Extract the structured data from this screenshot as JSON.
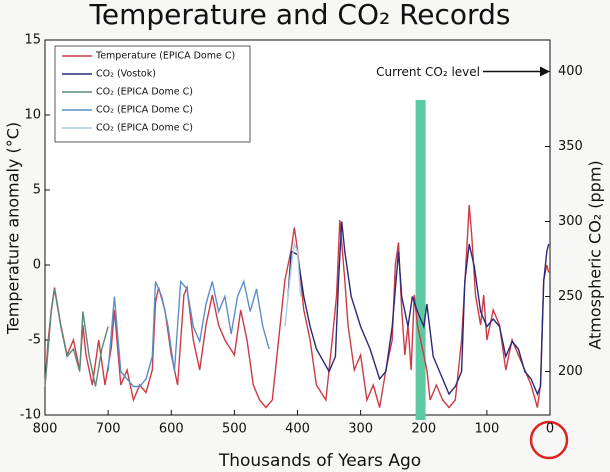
{
  "chart_data": {
    "type": "line",
    "title": "Temperature and CO₂ Records",
    "x_label": "Thousands of Years Ago",
    "y_label": "Temperature anomaly (°C)",
    "y2_label": "Atmospheric CO₂ (ppm)",
    "xlim": [
      800,
      0
    ],
    "xticks": [
      800,
      700,
      600,
      500,
      400,
      300,
      200,
      100,
      0
    ],
    "ylim": [
      -10,
      15
    ],
    "yticks": [
      -10,
      -5,
      0,
      5,
      10,
      15
    ],
    "y2lim": [
      171,
      421
    ],
    "y2ticks": [
      200,
      250,
      300,
      350,
      400
    ],
    "annotation": {
      "text": "Current CO₂ level",
      "value": 400
    },
    "highlight": {
      "x": 205,
      "color": "#5cc9a2"
    },
    "series": [
      {
        "name": "Temperature (EPICA Dome C)",
        "color": "#cc3b45",
        "x": [
          800,
          795,
          790,
          785,
          775,
          765,
          755,
          745,
          740,
          735,
          725,
          715,
          705,
          695,
          690,
          680,
          670,
          660,
          650,
          640,
          630,
          625,
          620,
          610,
          600,
          590,
          580,
          575,
          565,
          555,
          545,
          535,
          525,
          515,
          500,
          490,
          480,
          470,
          460,
          450,
          440,
          430,
          420,
          410,
          405,
          400,
          395,
          390,
          380,
          370,
          355,
          345,
          338,
          333,
          325,
          320,
          310,
          300,
          290,
          280,
          270,
          260,
          250,
          245,
          240,
          235,
          230,
          225,
          220,
          215,
          210,
          200,
          195,
          190,
          180,
          170,
          160,
          150,
          140,
          132,
          128,
          124,
          118,
          110,
          105,
          100,
          90,
          80,
          70,
          60,
          50,
          40,
          30,
          20,
          15,
          10,
          5,
          2
        ],
        "values": [
          -8,
          -5,
          -3,
          -1.5,
          -4,
          -6,
          -5,
          -7,
          -4,
          -6,
          -8,
          -5,
          -8,
          -5.5,
          -3,
          -8,
          -7,
          -9,
          -8,
          -8.5,
          -7,
          -2.5,
          -1.5,
          -3,
          -6,
          -8,
          -2,
          -1.5,
          -5,
          -7,
          -4,
          -2,
          -4,
          -5,
          -6,
          -3,
          -5,
          -8,
          -9,
          -9.5,
          -9,
          -5,
          -1,
          1,
          2.5,
          1,
          -1,
          -3,
          -5,
          -8,
          -9,
          -5,
          -2,
          3,
          -1,
          -4,
          -7,
          -6,
          -9,
          -8,
          -9.5,
          -7,
          -5,
          0,
          1.5,
          -3,
          -6,
          -4,
          -7,
          -2,
          -4,
          -6,
          -7,
          -9,
          -8,
          -9,
          -9.5,
          -9,
          -5,
          1,
          4,
          2,
          -2,
          -4,
          -2,
          -5,
          -3,
          -4,
          -7,
          -5,
          -6,
          -7,
          -8,
          -9.5,
          -8,
          -1,
          0,
          -0.5
        ]
      },
      {
        "name": "CO₂ (Vostok)",
        "color": "#2a2a78",
        "axis": "y2",
        "x": [
          415,
          410,
          400,
          390,
          380,
          370,
          350,
          340,
          335,
          330,
          325,
          315,
          300,
          285,
          270,
          260,
          250,
          240,
          235,
          225,
          218,
          210,
          200,
          195,
          185,
          170,
          160,
          150,
          140,
          135,
          128,
          120,
          110,
          100,
          90,
          80,
          70,
          60,
          50,
          40,
          30,
          20,
          15,
          10,
          5,
          2
        ],
        "values": [
          250,
          280,
          278,
          250,
          230,
          215,
          200,
          210,
          260,
          300,
          280,
          250,
          230,
          215,
          195,
          200,
          230,
          280,
          250,
          230,
          250,
          240,
          230,
          245,
          210,
          195,
          185,
          190,
          200,
          260,
          285,
          270,
          240,
          230,
          235,
          230,
          210,
          220,
          215,
          200,
          195,
          185,
          190,
          260,
          280,
          285
        ]
      },
      {
        "name": "CO₂ (EPICA Dome C)",
        "color": "#5a8a7a",
        "axis": "y2",
        "x": [
          800,
          790,
          785,
          775,
          765,
          755,
          745,
          740,
          730,
          720,
          710,
          700
        ],
        "values": [
          190,
          240,
          255,
          230,
          210,
          215,
          200,
          240,
          210,
          190,
          215,
          230
        ]
      },
      {
        "name": "CO₂ (EPICA Dome C)",
        "color": "#5b8fc9",
        "axis": "y2",
        "x": [
          700,
          690,
          680,
          670,
          660,
          650,
          640,
          630,
          625,
          615,
          605,
          595,
          585,
          575,
          565,
          555,
          545,
          535,
          525,
          515,
          505,
          495,
          485,
          475,
          465,
          455,
          445
        ],
        "values": [
          200,
          250,
          200,
          195,
          190,
          190,
          195,
          210,
          260,
          250,
          230,
          200,
          260,
          255,
          230,
          220,
          245,
          260,
          240,
          250,
          225,
          250,
          260,
          240,
          255,
          230,
          215
        ]
      },
      {
        "name": "CO₂ (EPICA Dome C)",
        "color": "#a9cde0",
        "axis": "y2",
        "x": [
          420,
          410,
          405,
          400,
          395
        ],
        "values": [
          230,
          270,
          285,
          280,
          250
        ]
      }
    ]
  }
}
